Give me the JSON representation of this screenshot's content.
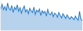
{
  "chart_data": {
    "type": "area",
    "color": "#2f7fc8",
    "x": [
      0,
      1,
      2,
      3,
      4,
      5,
      6,
      7,
      8,
      9,
      10,
      11,
      12,
      13,
      14,
      15,
      16,
      17,
      18,
      19,
      20,
      21,
      22,
      23,
      24,
      25,
      26,
      27,
      28,
      29,
      30,
      31,
      32,
      33,
      34,
      35,
      36,
      37,
      38,
      39,
      40,
      41,
      42,
      43,
      44,
      45,
      46,
      47,
      48,
      49,
      50,
      51,
      52,
      53,
      54,
      55,
      56,
      57,
      58,
      59
    ],
    "values": [
      72,
      88,
      70,
      80,
      66,
      92,
      74,
      68,
      84,
      60,
      78,
      70,
      86,
      64,
      76,
      58,
      72,
      82,
      62,
      70,
      56,
      74,
      66,
      60,
      78,
      54,
      68,
      62,
      72,
      50,
      66,
      58,
      64,
      48,
      70,
      56,
      52,
      62,
      46,
      58,
      54,
      44,
      60,
      50,
      42,
      56,
      48,
      40,
      52,
      44,
      38,
      46,
      42,
      36,
      48,
      40,
      34,
      64,
      38,
      32
    ],
    "xlim": [
      0,
      59
    ],
    "ylim": [
      0,
      100
    ],
    "tick_labels": false
  }
}
